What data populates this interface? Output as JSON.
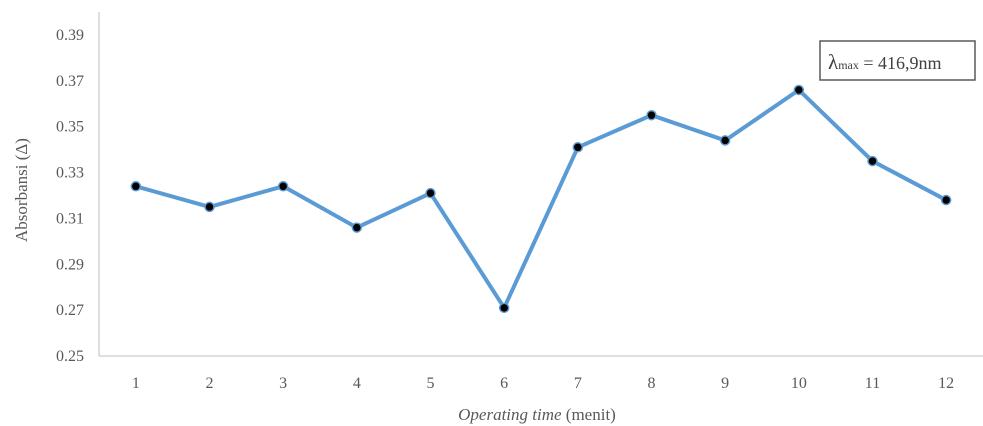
{
  "chart_data": {
    "type": "line",
    "x": [
      1,
      2,
      3,
      4,
      5,
      6,
      7,
      8,
      9,
      10,
      11,
      12
    ],
    "categories": [
      "1",
      "2",
      "3",
      "4",
      "5",
      "6",
      "7",
      "8",
      "9",
      "10",
      "11",
      "12"
    ],
    "series": [
      {
        "values": [
          0.324,
          0.315,
          0.324,
          0.306,
          0.321,
          0.271,
          0.341,
          0.355,
          0.344,
          0.366,
          0.335,
          0.318
        ],
        "color": "#5B9BD5",
        "marker_color": "#000000"
      }
    ],
    "ylim": [
      0.25,
      0.4
    ],
    "yticks": [
      0.25,
      0.27,
      0.29,
      0.31,
      0.33,
      0.35,
      0.37,
      0.39
    ],
    "ytick_labels": [
      "0.25",
      "0.27",
      "0.29",
      "0.31",
      "0.33",
      "0.35",
      "0.37",
      "0.39"
    ],
    "ylabel": "Absorbansi (Δ)",
    "xlabel_italic": "Operating time",
    "xlabel_rest": " (menit)",
    "annotation": {
      "symbol": "λ",
      "subscript": "max",
      "value": " = 416,9nm"
    },
    "grid": false
  }
}
